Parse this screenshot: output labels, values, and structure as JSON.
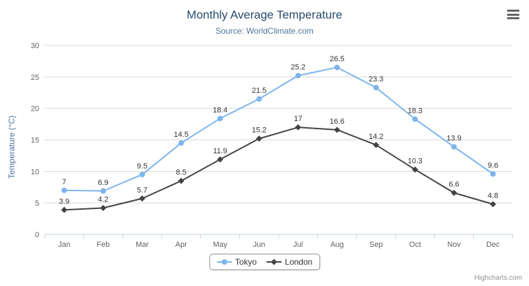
{
  "title": "Monthly Average Temperature",
  "subtitle": "Source: WorldClimate.com",
  "credits": "Highcharts.com",
  "colors": {
    "title": "#274b6d",
    "subtitle": "#4d759e",
    "axis_label": "#606060",
    "axis_line": "#c0d0e0",
    "gridline": "#d8d8d8",
    "data_label": "#333333",
    "legend_border": "#909090"
  },
  "icons": {
    "export_menu": "hamburger-icon"
  },
  "chart_data": {
    "type": "line",
    "title": "Monthly Average Temperature",
    "subtitle": "Source: WorldClimate.com",
    "categories": [
      "Jan",
      "Feb",
      "Mar",
      "Apr",
      "May",
      "Jun",
      "Jul",
      "Aug",
      "Sep",
      "Oct",
      "Nov",
      "Dec"
    ],
    "series": [
      {
        "name": "Tokyo",
        "color": "#7cb5ec",
        "marker": "circle",
        "values": [
          7,
          6.9,
          9.5,
          14.5,
          18.4,
          21.5,
          25.2,
          26.5,
          23.3,
          18.3,
          13.9,
          9.6
        ]
      },
      {
        "name": "London",
        "color": "#434348",
        "marker": "diamond",
        "values": [
          3.9,
          4.2,
          5.7,
          8.5,
          11.9,
          15.2,
          17,
          16.6,
          14.2,
          10.3,
          6.6,
          4.8
        ]
      }
    ],
    "xlabel": "",
    "ylabel": "Temperature (°C)",
    "ylim": [
      0,
      30
    ],
    "yticks": [
      0,
      5,
      10,
      15,
      20,
      25,
      30
    ],
    "grid": true,
    "data_labels": true,
    "legend_position": "bottom-center"
  }
}
